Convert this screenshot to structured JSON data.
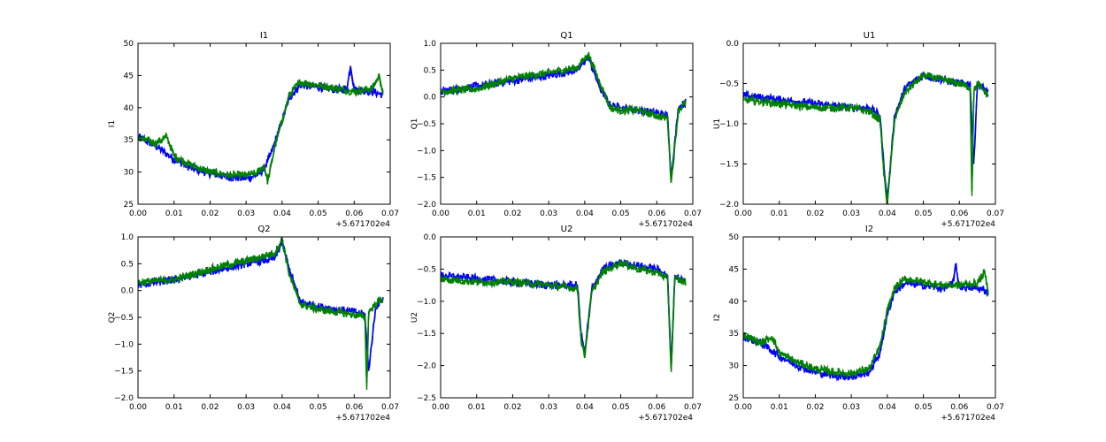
{
  "chart_data": [
    {
      "type": "line",
      "title": "I1",
      "ylabel": "I1",
      "xlabel": "",
      "x_offset_label": "+5.671702e4",
      "xlim": [
        0,
        0.07
      ],
      "ylim": [
        25,
        50
      ],
      "xticks": [
        0.0,
        0.01,
        0.02,
        0.03,
        0.04,
        0.05,
        0.06,
        0.07
      ],
      "xtick_labels": [
        "0.00",
        "0.01",
        "0.02",
        "0.03",
        "0.04",
        "0.05",
        "0.06",
        "0.07"
      ],
      "yticks": [
        25,
        30,
        35,
        40,
        45,
        50
      ],
      "ytick_labels": [
        "25",
        "30",
        "35",
        "40",
        "45",
        "50"
      ],
      "grid": false,
      "series": [
        {
          "color": "#0000ff",
          "x": [
            0.0,
            0.005,
            0.01,
            0.015,
            0.02,
            0.025,
            0.03,
            0.033,
            0.035,
            0.037,
            0.04,
            0.042,
            0.045,
            0.05,
            0.055,
            0.058,
            0.059,
            0.06,
            0.065,
            0.068
          ],
          "y": [
            35.5,
            34,
            32,
            30.5,
            29.8,
            29.2,
            29,
            29.5,
            30.5,
            33,
            38,
            41.5,
            43.5,
            43.2,
            42.8,
            43,
            46.5,
            42.8,
            42.5,
            42
          ]
        },
        {
          "color": "#008000",
          "x": [
            0.0,
            0.005,
            0.008,
            0.01,
            0.015,
            0.02,
            0.025,
            0.03,
            0.033,
            0.035,
            0.036,
            0.038,
            0.04,
            0.042,
            0.045,
            0.05,
            0.055,
            0.06,
            0.065,
            0.067,
            0.068
          ],
          "y": [
            35.3,
            34.5,
            35.5,
            32.5,
            31,
            30,
            29.5,
            29.5,
            29.8,
            31,
            28.5,
            34,
            38,
            42,
            44,
            43.5,
            43,
            42.5,
            43,
            45,
            42
          ]
        }
      ]
    },
    {
      "type": "line",
      "title": "Q1",
      "ylabel": "Q1",
      "xlabel": "",
      "x_offset_label": "+5.671702e4",
      "xlim": [
        0,
        0.07
      ],
      "ylim": [
        -2.0,
        1.0
      ],
      "xticks": [
        0.0,
        0.01,
        0.02,
        0.03,
        0.04,
        0.05,
        0.06,
        0.07
      ],
      "xtick_labels": [
        "0.00",
        "0.01",
        "0.02",
        "0.03",
        "0.04",
        "0.05",
        "0.06",
        "0.07"
      ],
      "yticks": [
        -2.0,
        -1.5,
        -1.0,
        -0.5,
        0.0,
        0.5,
        1.0
      ],
      "ytick_labels": [
        "−2.0",
        "−1.5",
        "−1.0",
        "−0.5",
        "0.0",
        "0.5",
        "1.0"
      ],
      "grid": false,
      "series": [
        {
          "color": "#0000ff",
          "x": [
            0.0,
            0.01,
            0.02,
            0.03,
            0.038,
            0.041,
            0.044,
            0.047,
            0.05,
            0.055,
            0.06,
            0.063,
            0.064,
            0.066,
            0.068
          ],
          "y": [
            0.1,
            0.2,
            0.3,
            0.4,
            0.5,
            0.75,
            0.2,
            -0.15,
            -0.2,
            -0.25,
            -0.3,
            -0.35,
            -1.5,
            -0.2,
            -0.1
          ]
        },
        {
          "color": "#008000",
          "x": [
            0.0,
            0.01,
            0.02,
            0.03,
            0.038,
            0.041,
            0.044,
            0.047,
            0.05,
            0.055,
            0.06,
            0.063,
            0.064,
            0.066,
            0.068
          ],
          "y": [
            0.1,
            0.15,
            0.35,
            0.45,
            0.55,
            0.8,
            0.3,
            -0.2,
            -0.25,
            -0.25,
            -0.35,
            -0.4,
            -1.6,
            -0.25,
            -0.1
          ]
        }
      ]
    },
    {
      "type": "line",
      "title": "U1",
      "ylabel": "U1",
      "xlabel": "",
      "x_offset_label": "+5.671702e4",
      "xlim": [
        0,
        0.07
      ],
      "ylim": [
        -2.0,
        0.0
      ],
      "xticks": [
        0.0,
        0.01,
        0.02,
        0.03,
        0.04,
        0.05,
        0.06,
        0.07
      ],
      "xtick_labels": [
        "0.00",
        "0.01",
        "0.02",
        "0.03",
        "0.04",
        "0.05",
        "0.06",
        "0.07"
      ],
      "yticks": [
        -2.0,
        -1.5,
        -1.0,
        -0.5,
        0.0
      ],
      "ytick_labels": [
        "−2.0",
        "−1.5",
        "−1.0",
        "−0.5",
        "0.0"
      ],
      "grid": false,
      "series": [
        {
          "color": "#0000ff",
          "x": [
            0.0,
            0.01,
            0.02,
            0.03,
            0.035,
            0.038,
            0.039,
            0.04,
            0.042,
            0.045,
            0.05,
            0.055,
            0.06,
            0.063,
            0.064,
            0.065,
            0.068
          ],
          "y": [
            -0.65,
            -0.7,
            -0.75,
            -0.8,
            -0.8,
            -0.9,
            -1.5,
            -1.95,
            -0.9,
            -0.55,
            -0.4,
            -0.45,
            -0.5,
            -0.5,
            -1.5,
            -0.5,
            -0.6
          ]
        },
        {
          "color": "#008000",
          "x": [
            0.0,
            0.01,
            0.02,
            0.03,
            0.035,
            0.038,
            0.039,
            0.04,
            0.042,
            0.045,
            0.05,
            0.055,
            0.06,
            0.063,
            0.0635,
            0.064,
            0.065,
            0.068
          ],
          "y": [
            -0.7,
            -0.75,
            -0.8,
            -0.8,
            -0.85,
            -0.95,
            -1.6,
            -2.0,
            -0.95,
            -0.6,
            -0.4,
            -0.45,
            -0.5,
            -0.55,
            -1.9,
            -0.6,
            -0.5,
            -0.65
          ]
        }
      ]
    },
    {
      "type": "line",
      "title": "Q2",
      "ylabel": "Q2",
      "xlabel": "",
      "x_offset_label": "+5.671702e4",
      "xlim": [
        0,
        0.07
      ],
      "ylim": [
        -2.0,
        1.0
      ],
      "xticks": [
        0.0,
        0.01,
        0.02,
        0.03,
        0.04,
        0.05,
        0.06,
        0.07
      ],
      "xtick_labels": [
        "0.00",
        "0.01",
        "0.02",
        "0.03",
        "0.04",
        "0.05",
        "0.06",
        "0.07"
      ],
      "yticks": [
        -2.0,
        -1.5,
        -1.0,
        -0.5,
        0.0,
        0.5,
        1.0
      ],
      "ytick_labels": [
        "−2.0",
        "−1.5",
        "−1.0",
        "−0.5",
        "0.0",
        "0.5",
        "1.0"
      ],
      "grid": false,
      "series": [
        {
          "color": "#0000ff",
          "x": [
            0.0,
            0.01,
            0.02,
            0.03,
            0.038,
            0.04,
            0.042,
            0.045,
            0.05,
            0.055,
            0.06,
            0.063,
            0.064,
            0.066,
            0.068
          ],
          "y": [
            0.1,
            0.2,
            0.35,
            0.5,
            0.6,
            0.9,
            0.4,
            -0.2,
            -0.3,
            -0.35,
            -0.4,
            -0.45,
            -1.5,
            -0.3,
            -0.15
          ]
        },
        {
          "color": "#008000",
          "x": [
            0.0,
            0.01,
            0.02,
            0.03,
            0.038,
            0.04,
            0.042,
            0.045,
            0.05,
            0.055,
            0.06,
            0.063,
            0.0635,
            0.064,
            0.066,
            0.068
          ],
          "y": [
            0.15,
            0.2,
            0.4,
            0.55,
            0.7,
            0.95,
            0.3,
            -0.25,
            -0.35,
            -0.4,
            -0.45,
            -0.5,
            -1.85,
            -0.4,
            -0.25,
            -0.15
          ]
        }
      ]
    },
    {
      "type": "line",
      "title": "U2",
      "ylabel": "U2",
      "xlabel": "",
      "x_offset_label": "+5.671702e4",
      "xlim": [
        0,
        0.07
      ],
      "ylim": [
        -2.5,
        0.0
      ],
      "xticks": [
        0.0,
        0.01,
        0.02,
        0.03,
        0.04,
        0.05,
        0.06,
        0.07
      ],
      "xtick_labels": [
        "0.00",
        "0.01",
        "0.02",
        "0.03",
        "0.04",
        "0.05",
        "0.06",
        "0.07"
      ],
      "yticks": [
        -2.5,
        -2.0,
        -1.5,
        -1.0,
        -0.5,
        0.0
      ],
      "ytick_labels": [
        "−2.5",
        "−2.0",
        "−1.5",
        "−1.0",
        "−0.5",
        "0.0"
      ],
      "grid": false,
      "series": [
        {
          "color": "#0000ff",
          "x": [
            0.0,
            0.01,
            0.02,
            0.03,
            0.038,
            0.039,
            0.04,
            0.042,
            0.045,
            0.05,
            0.055,
            0.06,
            0.063,
            0.064,
            0.065,
            0.068
          ],
          "y": [
            -0.6,
            -0.65,
            -0.7,
            -0.75,
            -0.75,
            -1.5,
            -1.8,
            -0.8,
            -0.5,
            -0.4,
            -0.45,
            -0.5,
            -0.6,
            -2.0,
            -0.6,
            -0.7
          ]
        },
        {
          "color": "#008000",
          "x": [
            0.0,
            0.01,
            0.02,
            0.03,
            0.038,
            0.039,
            0.04,
            0.042,
            0.045,
            0.05,
            0.055,
            0.06,
            0.063,
            0.064,
            0.065,
            0.068
          ],
          "y": [
            -0.65,
            -0.7,
            -0.7,
            -0.75,
            -0.8,
            -1.6,
            -1.85,
            -0.85,
            -0.55,
            -0.4,
            -0.5,
            -0.55,
            -0.65,
            -2.1,
            -0.65,
            -0.7
          ]
        }
      ]
    },
    {
      "type": "line",
      "title": "I2",
      "ylabel": "I2",
      "xlabel": "",
      "x_offset_label": "+5.671702e4",
      "xlim": [
        0,
        0.07
      ],
      "ylim": [
        25,
        50
      ],
      "xticks": [
        0.0,
        0.01,
        0.02,
        0.03,
        0.04,
        0.05,
        0.06,
        0.07
      ],
      "xtick_labels": [
        "0.00",
        "0.01",
        "0.02",
        "0.03",
        "0.04",
        "0.05",
        "0.06",
        "0.07"
      ],
      "yticks": [
        25,
        30,
        35,
        40,
        45,
        50
      ],
      "ytick_labels": [
        "25",
        "30",
        "35",
        "40",
        "45",
        "50"
      ],
      "grid": false,
      "series": [
        {
          "color": "#0000ff",
          "x": [
            0.0,
            0.005,
            0.01,
            0.015,
            0.02,
            0.025,
            0.03,
            0.035,
            0.038,
            0.04,
            0.042,
            0.045,
            0.05,
            0.055,
            0.058,
            0.059,
            0.06,
            0.065,
            0.068
          ],
          "y": [
            34.5,
            33.5,
            31.5,
            30,
            29,
            28.5,
            28.2,
            29,
            32,
            38,
            41.5,
            42.8,
            42.5,
            42,
            42.5,
            45.5,
            42.3,
            42,
            41.5
          ]
        },
        {
          "color": "#008000",
          "x": [
            0.0,
            0.005,
            0.008,
            0.01,
            0.015,
            0.02,
            0.025,
            0.03,
            0.035,
            0.038,
            0.04,
            0.042,
            0.045,
            0.05,
            0.055,
            0.06,
            0.065,
            0.067,
            0.068
          ],
          "y": [
            34.8,
            33.5,
            34.5,
            32,
            30.5,
            29.5,
            29,
            28.8,
            29.5,
            33,
            38.5,
            42,
            43.5,
            43,
            42.5,
            42.5,
            42.8,
            44.5,
            41.5
          ]
        }
      ]
    }
  ]
}
